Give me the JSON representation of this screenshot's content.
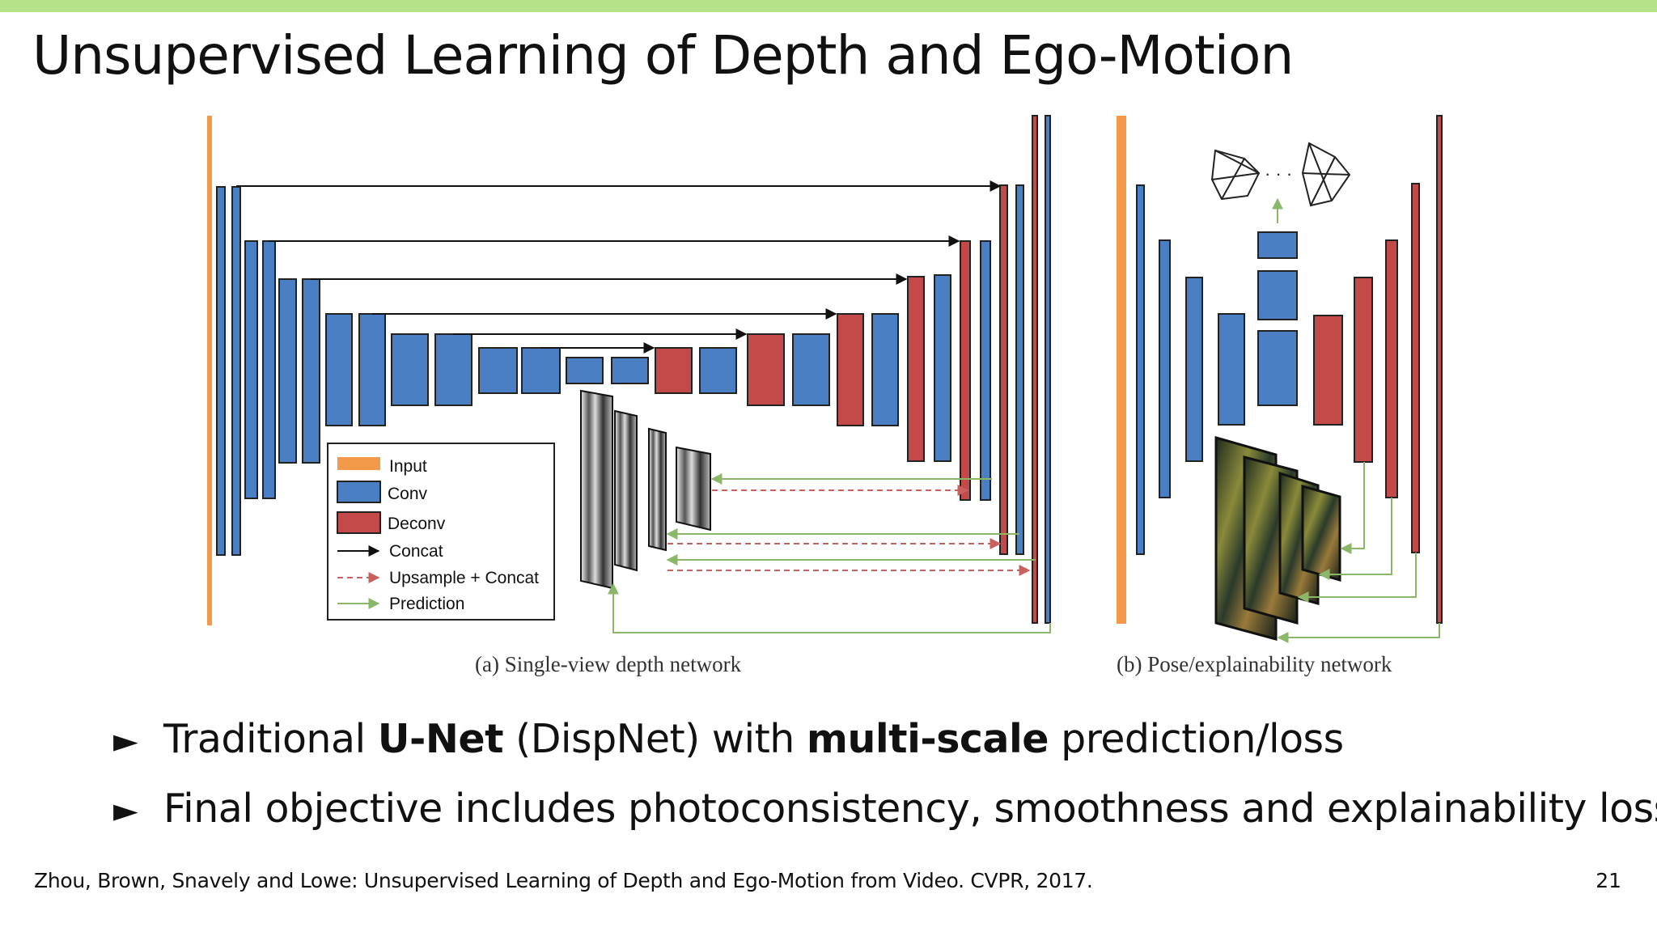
{
  "slide": {
    "title": "Unsupervised Learning of Depth and Ego-Motion",
    "page_number": "21",
    "citation": "Zhou, Brown, Snavely and Lowe: Unsupervised Learning of Depth and Ego-Motion from Video. CVPR, 2017."
  },
  "colors": {
    "accent_bar": "#b6e28a",
    "input": "#f39a4a",
    "conv": "#4a7fc4",
    "deconv": "#c44a4a",
    "concat": "#111111",
    "upsample": "#c86060",
    "prediction": "#8ab868"
  },
  "diagram": {
    "caption_a": "(a) Single-view depth network",
    "caption_b": "(b) Pose/explainability network",
    "legend": {
      "input": "Input",
      "conv": "Conv",
      "deconv": "Deconv",
      "concat": "Concat",
      "upsample": "Upsample + Concat",
      "prediction": "Prediction"
    },
    "pose_dots": "· · ·"
  },
  "bullets": [
    {
      "pre": "Traditional ",
      "b1": "U-Net",
      "mid": " (DispNet) with ",
      "b2": "multi-scale",
      "post": " prediction/loss"
    },
    {
      "pre": "Final objective includes photoconsistency, smoothness and explainability loss",
      "b1": "",
      "mid": "",
      "b2": "",
      "post": ""
    }
  ]
}
